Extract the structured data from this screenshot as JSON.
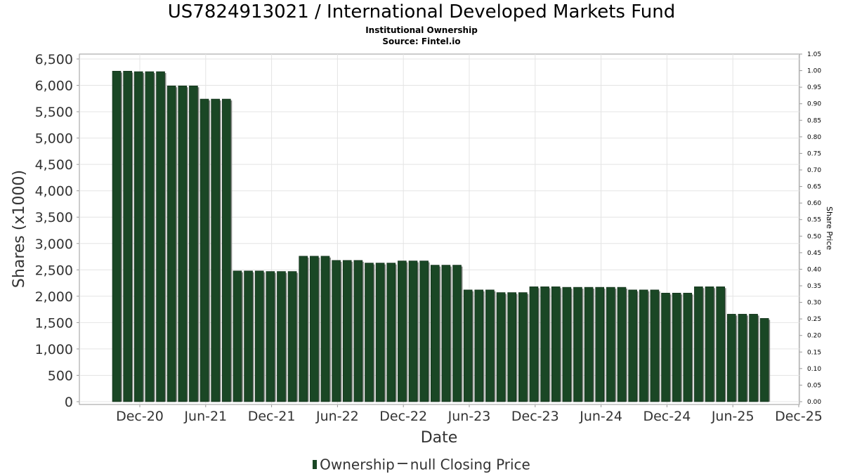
{
  "chart_data": {
    "type": "bar",
    "title": "US7824913021 / International Developed Markets Fund",
    "subtitle": [
      "Institutional Ownership",
      "Source: Fintel.io"
    ],
    "xlabel": "Date",
    "ylabel": "Shares (x1000)",
    "y2label": "Share Price",
    "ylim": [
      0,
      6500
    ],
    "y2lim": [
      0,
      1.05
    ],
    "yticks": [
      "0",
      "500",
      "1,000",
      "1,500",
      "2,000",
      "2,500",
      "3,000",
      "3,500",
      "4,000",
      "4,500",
      "5,000",
      "5,500",
      "6,000",
      "6,500"
    ],
    "y2ticks": [
      "0.00",
      "0.05",
      "0.10",
      "0.15",
      "0.20",
      "0.25",
      "0.30",
      "0.35",
      "0.40",
      "0.45",
      "0.50",
      "0.55",
      "0.60",
      "0.65",
      "0.70",
      "0.75",
      "0.80",
      "0.85",
      "0.90",
      "0.95",
      "1.00",
      "1.05"
    ],
    "xticks": [
      "Dec-20",
      "Jun-21",
      "Dec-21",
      "Jun-22",
      "Dec-22",
      "Jun-23",
      "Dec-23",
      "Jun-24",
      "Dec-24",
      "Jun-25",
      "Dec-25"
    ],
    "grid": true,
    "legend_position": "bottom",
    "series": [
      {
        "name": "Ownership",
        "color": "#1a4725",
        "values": [
          6270,
          6270,
          6260,
          6260,
          6260,
          5990,
          5990,
          5990,
          5740,
          5740,
          5740,
          2480,
          2480,
          2480,
          2470,
          2470,
          2470,
          2760,
          2760,
          2760,
          2680,
          2680,
          2680,
          2630,
          2630,
          2630,
          2670,
          2670,
          2670,
          2590,
          2590,
          2590,
          2120,
          2120,
          2120,
          2070,
          2070,
          2070,
          2180,
          2180,
          2180,
          2170,
          2170,
          2170,
          2170,
          2170,
          2170,
          2120,
          2120,
          2120,
          2060,
          2060,
          2060,
          2180,
          2180,
          2180,
          1660,
          1660,
          1660,
          1580
        ]
      },
      {
        "name": "null Closing Price",
        "color": "#444444",
        "values": []
      }
    ]
  }
}
